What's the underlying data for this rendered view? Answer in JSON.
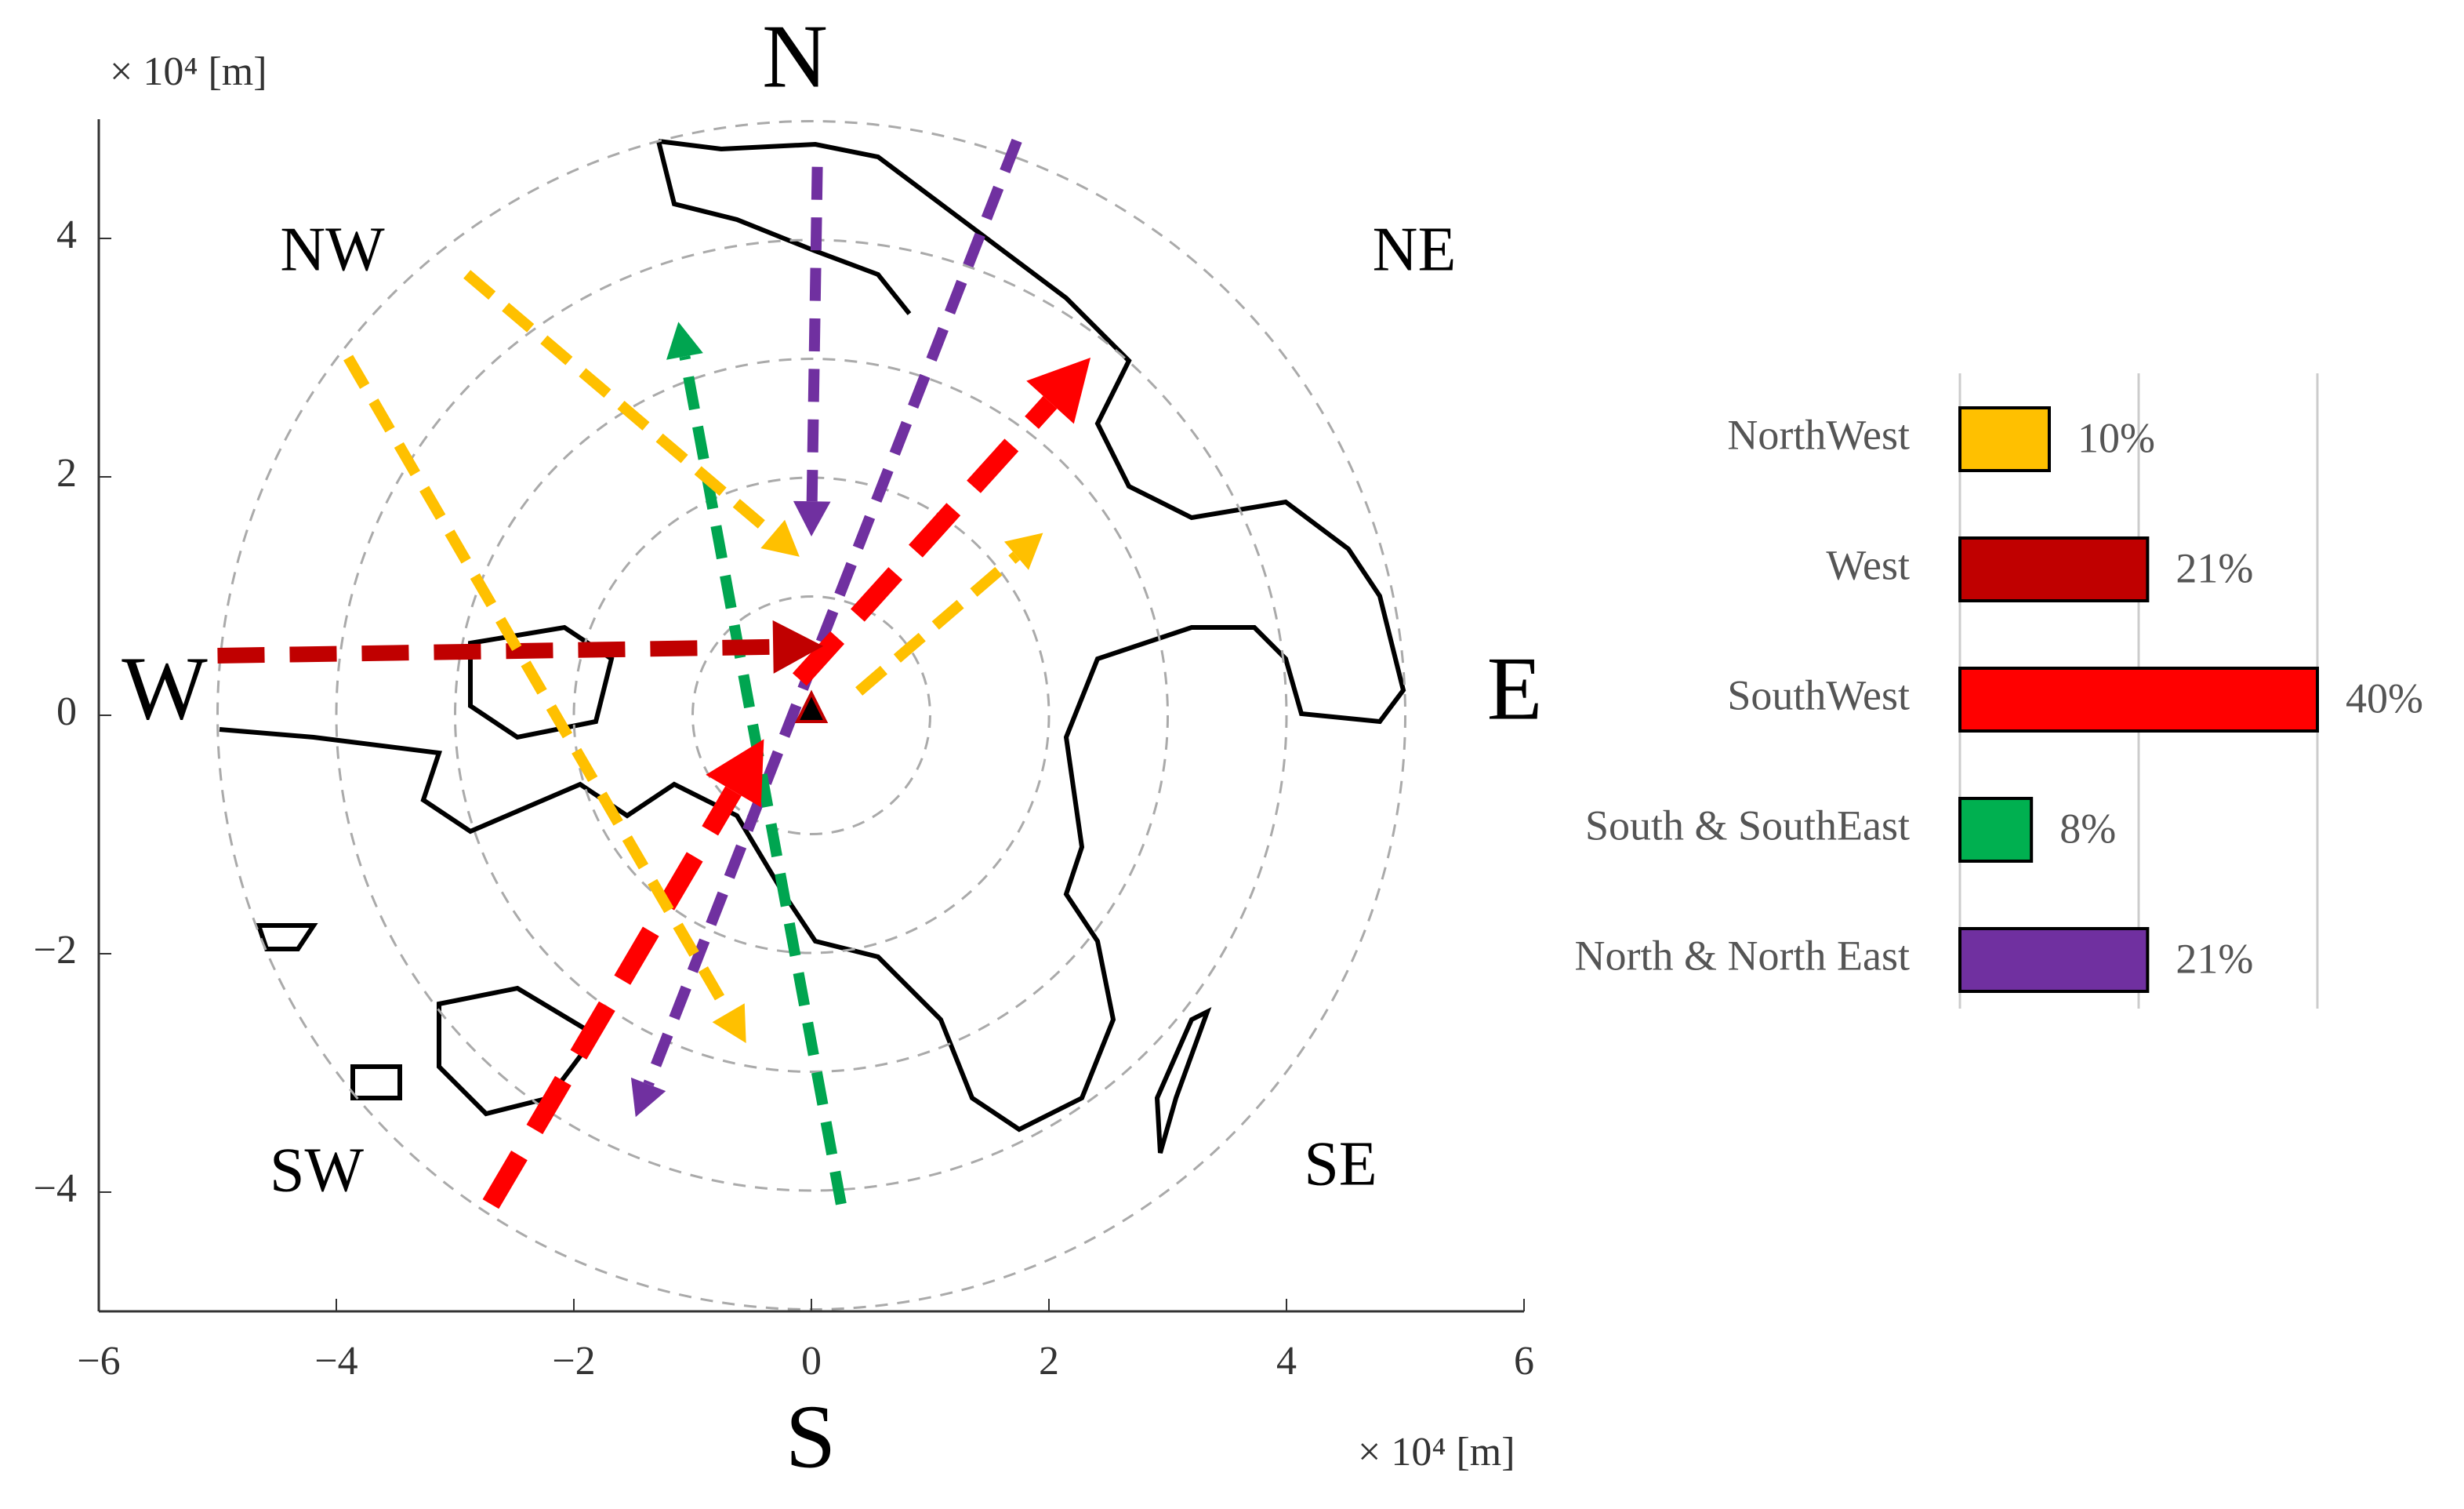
{
  "chart_data": [
    {
      "type": "map",
      "xlim": [
        -6,
        6
      ],
      "ylim": [
        -5,
        5
      ],
      "xticks": [
        {
          "value": -6,
          "label": "−6"
        },
        {
          "value": -4,
          "label": "−4"
        },
        {
          "value": -2,
          "label": "−2"
        },
        0,
        2,
        4,
        6
      ],
      "yticks": [
        {
          "value": -4,
          "label": "−4"
        },
        {
          "value": -2,
          "label": "−2"
        },
        0,
        2,
        4
      ],
      "xlabel": "× 10⁴ [m]",
      "ylabel": "× 10⁴ [m]",
      "rings": [
        1,
        2,
        3,
        4,
        5
      ],
      "compass": {
        "N": "N",
        "NE": "NE",
        "E": "E",
        "SE": "SE",
        "S": "S",
        "SW": "SW",
        "W": "W",
        "NW": "NW"
      },
      "arrows": [
        {
          "color": "#7030a0",
          "from": [
            0.05,
            4.6
          ],
          "to": [
            0,
            1.5
          ]
        },
        {
          "color": "#7030a0",
          "from": [
            1.73,
            4.82
          ],
          "to": [
            -1.48,
            -3.37
          ]
        },
        {
          "color": "#00a550",
          "from": [
            0.25,
            -4.1
          ],
          "to": [
            -1.12,
            3.3
          ]
        },
        {
          "color": "#ff0000",
          "from": [
            -2.7,
            -4.1
          ],
          "to": [
            -0.4,
            -0.2
          ]
        },
        {
          "color": "#ff0000",
          "from": [
            -0.1,
            0.3
          ],
          "to": [
            2.35,
            3.0
          ]
        },
        {
          "color": "#c00000",
          "from": [
            -5,
            0.5
          ],
          "to": [
            0.1,
            0.58
          ]
        },
        {
          "color": "#ffc000",
          "from": [
            -2.9,
            3.7
          ],
          "to": [
            -0.1,
            1.33
          ]
        },
        {
          "color": "#ffc000",
          "from": [
            -3.9,
            3.0
          ],
          "to": [
            -0.55,
            -2.75
          ]
        },
        {
          "color": "#ffc000",
          "from": [
            0.4,
            0.2
          ],
          "to": [
            1.95,
            1.53
          ]
        }
      ]
    },
    {
      "type": "barh",
      "categories": [
        "NorthWest",
        "West",
        "SouthWest",
        "South & SouthEast",
        "North & North East"
      ],
      "values": [
        10,
        21,
        40,
        8,
        21
      ],
      "value_labels": [
        "10%",
        "21%",
        "40%",
        "8%",
        "21%"
      ],
      "colors": [
        "#ffc000",
        "#c00000",
        "#ff0000",
        "#00b050",
        "#7030a0"
      ],
      "xlim": [
        0,
        40
      ],
      "gridlines": [
        0,
        20,
        40
      ]
    }
  ]
}
